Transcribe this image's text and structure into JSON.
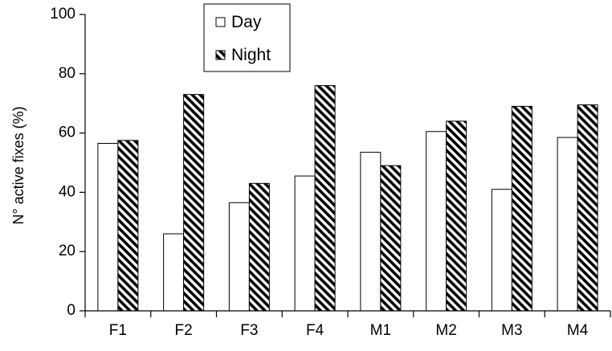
{
  "chart_data": {
    "type": "bar",
    "categories": [
      "F1",
      "F2",
      "F3",
      "F4",
      "M1",
      "M2",
      "M3",
      "M4"
    ],
    "series": [
      {
        "name": "Day",
        "values": [
          56.5,
          26,
          36.5,
          45.5,
          53.5,
          60.5,
          41,
          58.5
        ],
        "fill": "#ffffff",
        "pattern": "none"
      },
      {
        "name": "Night",
        "values": [
          57.5,
          73,
          43,
          76,
          49,
          64,
          69,
          69.5
        ],
        "fill": "#000000",
        "pattern": "diagonal-stripes"
      }
    ],
    "ylabel": "N° active fixes (%)",
    "ylim": [
      0,
      100
    ],
    "yticks": [
      0,
      20,
      40,
      60,
      80,
      100
    ],
    "grid": false,
    "legend_position": "top-center"
  }
}
